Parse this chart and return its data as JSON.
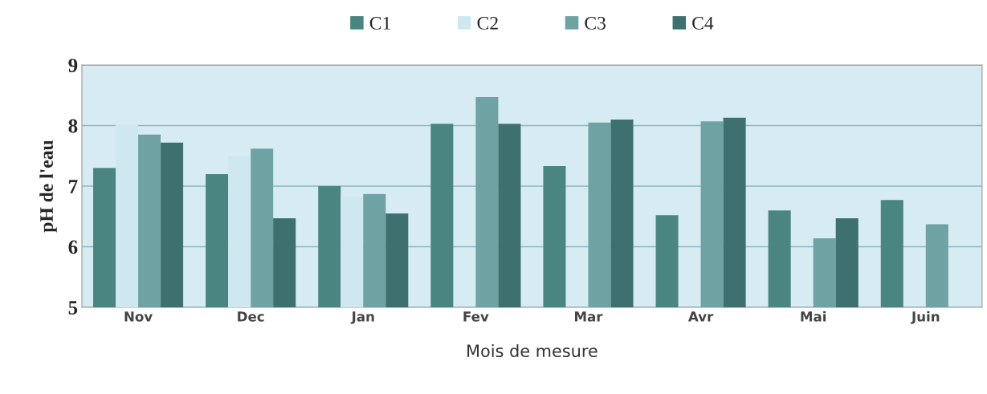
{
  "chart_data": {
    "type": "bar",
    "xlabel": "Mois de mesure",
    "ylabel": "pH de l'eau",
    "categories": [
      "Nov",
      "Dec",
      "Jan",
      "Fev",
      "Mar",
      "Avr",
      "Mai",
      "Juin"
    ],
    "series": [
      {
        "name": "C1",
        "color": "#4a8580",
        "values": [
          7.3,
          7.2,
          7.0,
          8.03,
          7.33,
          6.52,
          6.6,
          6.77
        ]
      },
      {
        "name": "C2",
        "color": "#cfe8f0",
        "values": [
          8.02,
          7.5,
          6.83,
          null,
          null,
          null,
          null,
          null
        ]
      },
      {
        "name": "C3",
        "color": "#6fa2a3",
        "values": [
          7.85,
          7.62,
          6.87,
          8.47,
          8.05,
          8.07,
          6.14,
          6.37
        ]
      },
      {
        "name": "C4",
        "color": "#3d706e",
        "values": [
          7.72,
          6.47,
          6.55,
          8.03,
          8.1,
          8.13,
          6.47,
          null
        ]
      }
    ],
    "ylim": [
      5,
      9
    ],
    "yticks": [
      5,
      6,
      7,
      8,
      9
    ],
    "grid": "y",
    "legend": "top"
  }
}
